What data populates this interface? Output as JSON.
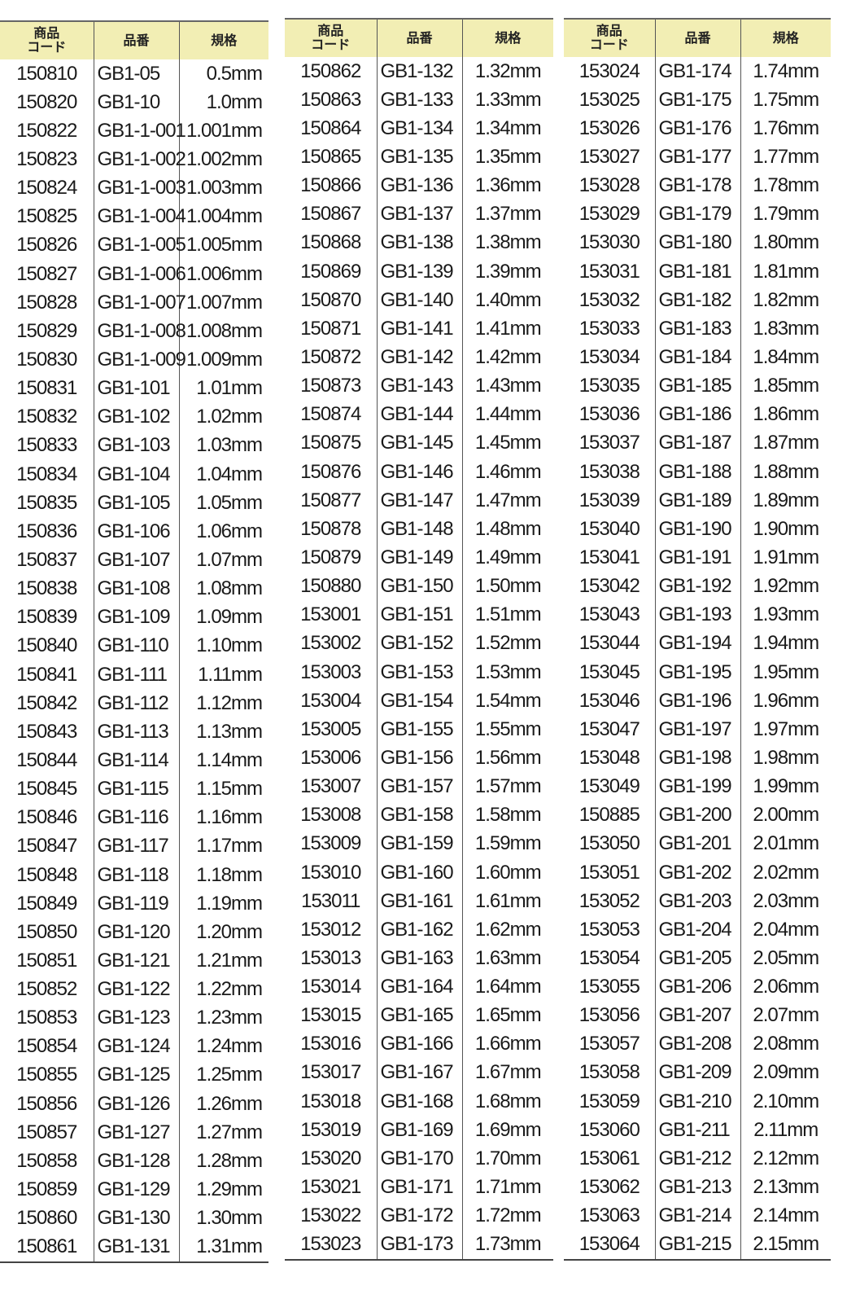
{
  "headers": {
    "code": "商品\nコード",
    "code_line1": "商品",
    "code_line2": "コード",
    "item": "品番",
    "spec": "規格"
  },
  "colors": {
    "header_bg": "#f2eeb4"
  },
  "tables": [
    {
      "rows": [
        [
          "150810",
          "GB1-05",
          "0.5mm"
        ],
        [
          "150820",
          "GB1-10",
          "1.0mm"
        ],
        [
          "150822",
          "GB1-1-001",
          "1.001mm"
        ],
        [
          "150823",
          "GB1-1-002",
          "1.002mm"
        ],
        [
          "150824",
          "GB1-1-003",
          "1.003mm"
        ],
        [
          "150825",
          "GB1-1-004",
          "1.004mm"
        ],
        [
          "150826",
          "GB1-1-005",
          "1.005mm"
        ],
        [
          "150827",
          "GB1-1-006",
          "1.006mm"
        ],
        [
          "150828",
          "GB1-1-007",
          "1.007mm"
        ],
        [
          "150829",
          "GB1-1-008",
          "1.008mm"
        ],
        [
          "150830",
          "GB1-1-009",
          "1.009mm"
        ],
        [
          "150831",
          "GB1-101",
          "1.01mm"
        ],
        [
          "150832",
          "GB1-102",
          "1.02mm"
        ],
        [
          "150833",
          "GB1-103",
          "1.03mm"
        ],
        [
          "150834",
          "GB1-104",
          "1.04mm"
        ],
        [
          "150835",
          "GB1-105",
          "1.05mm"
        ],
        [
          "150836",
          "GB1-106",
          "1.06mm"
        ],
        [
          "150837",
          "GB1-107",
          "1.07mm"
        ],
        [
          "150838",
          "GB1-108",
          "1.08mm"
        ],
        [
          "150839",
          "GB1-109",
          "1.09mm"
        ],
        [
          "150840",
          "GB1-110",
          "1.10mm"
        ],
        [
          "150841",
          "GB1-111",
          "1.11mm"
        ],
        [
          "150842",
          "GB1-112",
          "1.12mm"
        ],
        [
          "150843",
          "GB1-113",
          "1.13mm"
        ],
        [
          "150844",
          "GB1-114",
          "1.14mm"
        ],
        [
          "150845",
          "GB1-115",
          "1.15mm"
        ],
        [
          "150846",
          "GB1-116",
          "1.16mm"
        ],
        [
          "150847",
          "GB1-117",
          "1.17mm"
        ],
        [
          "150848",
          "GB1-118",
          "1.18mm"
        ],
        [
          "150849",
          "GB1-119",
          "1.19mm"
        ],
        [
          "150850",
          "GB1-120",
          "1.20mm"
        ],
        [
          "150851",
          "GB1-121",
          "1.21mm"
        ],
        [
          "150852",
          "GB1-122",
          "1.22mm"
        ],
        [
          "150853",
          "GB1-123",
          "1.23mm"
        ],
        [
          "150854",
          "GB1-124",
          "1.24mm"
        ],
        [
          "150855",
          "GB1-125",
          "1.25mm"
        ],
        [
          "150856",
          "GB1-126",
          "1.26mm"
        ],
        [
          "150857",
          "GB1-127",
          "1.27mm"
        ],
        [
          "150858",
          "GB1-128",
          "1.28mm"
        ],
        [
          "150859",
          "GB1-129",
          "1.29mm"
        ],
        [
          "150860",
          "GB1-130",
          "1.30mm"
        ],
        [
          "150861",
          "GB1-131",
          "1.31mm"
        ]
      ]
    },
    {
      "rows": [
        [
          "150862",
          "GB1-132",
          "1.32mm"
        ],
        [
          "150863",
          "GB1-133",
          "1.33mm"
        ],
        [
          "150864",
          "GB1-134",
          "1.34mm"
        ],
        [
          "150865",
          "GB1-135",
          "1.35mm"
        ],
        [
          "150866",
          "GB1-136",
          "1.36mm"
        ],
        [
          "150867",
          "GB1-137",
          "1.37mm"
        ],
        [
          "150868",
          "GB1-138",
          "1.38mm"
        ],
        [
          "150869",
          "GB1-139",
          "1.39mm"
        ],
        [
          "150870",
          "GB1-140",
          "1.40mm"
        ],
        [
          "150871",
          "GB1-141",
          "1.41mm"
        ],
        [
          "150872",
          "GB1-142",
          "1.42mm"
        ],
        [
          "150873",
          "GB1-143",
          "1.43mm"
        ],
        [
          "150874",
          "GB1-144",
          "1.44mm"
        ],
        [
          "150875",
          "GB1-145",
          "1.45mm"
        ],
        [
          "150876",
          "GB1-146",
          "1.46mm"
        ],
        [
          "150877",
          "GB1-147",
          "1.47mm"
        ],
        [
          "150878",
          "GB1-148",
          "1.48mm"
        ],
        [
          "150879",
          "GB1-149",
          "1.49mm"
        ],
        [
          "150880",
          "GB1-150",
          "1.50mm"
        ],
        [
          "153001",
          "GB1-151",
          "1.51mm"
        ],
        [
          "153002",
          "GB1-152",
          "1.52mm"
        ],
        [
          "153003",
          "GB1-153",
          "1.53mm"
        ],
        [
          "153004",
          "GB1-154",
          "1.54mm"
        ],
        [
          "153005",
          "GB1-155",
          "1.55mm"
        ],
        [
          "153006",
          "GB1-156",
          "1.56mm"
        ],
        [
          "153007",
          "GB1-157",
          "1.57mm"
        ],
        [
          "153008",
          "GB1-158",
          "1.58mm"
        ],
        [
          "153009",
          "GB1-159",
          "1.59mm"
        ],
        [
          "153010",
          "GB1-160",
          "1.60mm"
        ],
        [
          "153011",
          "GB1-161",
          "1.61mm"
        ],
        [
          "153012",
          "GB1-162",
          "1.62mm"
        ],
        [
          "153013",
          "GB1-163",
          "1.63mm"
        ],
        [
          "153014",
          "GB1-164",
          "1.64mm"
        ],
        [
          "153015",
          "GB1-165",
          "1.65mm"
        ],
        [
          "153016",
          "GB1-166",
          "1.66mm"
        ],
        [
          "153017",
          "GB1-167",
          "1.67mm"
        ],
        [
          "153018",
          "GB1-168",
          "1.68mm"
        ],
        [
          "153019",
          "GB1-169",
          "1.69mm"
        ],
        [
          "153020",
          "GB1-170",
          "1.70mm"
        ],
        [
          "153021",
          "GB1-171",
          "1.71mm"
        ],
        [
          "153022",
          "GB1-172",
          "1.72mm"
        ],
        [
          "153023",
          "GB1-173",
          "1.73mm"
        ]
      ]
    },
    {
      "rows": [
        [
          "153024",
          "GB1-174",
          "1.74mm"
        ],
        [
          "153025",
          "GB1-175",
          "1.75mm"
        ],
        [
          "153026",
          "GB1-176",
          "1.76mm"
        ],
        [
          "153027",
          "GB1-177",
          "1.77mm"
        ],
        [
          "153028",
          "GB1-178",
          "1.78mm"
        ],
        [
          "153029",
          "GB1-179",
          "1.79mm"
        ],
        [
          "153030",
          "GB1-180",
          "1.80mm"
        ],
        [
          "153031",
          "GB1-181",
          "1.81mm"
        ],
        [
          "153032",
          "GB1-182",
          "1.82mm"
        ],
        [
          "153033",
          "GB1-183",
          "1.83mm"
        ],
        [
          "153034",
          "GB1-184",
          "1.84mm"
        ],
        [
          "153035",
          "GB1-185",
          "1.85mm"
        ],
        [
          "153036",
          "GB1-186",
          "1.86mm"
        ],
        [
          "153037",
          "GB1-187",
          "1.87mm"
        ],
        [
          "153038",
          "GB1-188",
          "1.88mm"
        ],
        [
          "153039",
          "GB1-189",
          "1.89mm"
        ],
        [
          "153040",
          "GB1-190",
          "1.90mm"
        ],
        [
          "153041",
          "GB1-191",
          "1.91mm"
        ],
        [
          "153042",
          "GB1-192",
          "1.92mm"
        ],
        [
          "153043",
          "GB1-193",
          "1.93mm"
        ],
        [
          "153044",
          "GB1-194",
          "1.94mm"
        ],
        [
          "153045",
          "GB1-195",
          "1.95mm"
        ],
        [
          "153046",
          "GB1-196",
          "1.96mm"
        ],
        [
          "153047",
          "GB1-197",
          "1.97mm"
        ],
        [
          "153048",
          "GB1-198",
          "1.98mm"
        ],
        [
          "153049",
          "GB1-199",
          "1.99mm"
        ],
        [
          "150885",
          "GB1-200",
          "2.00mm"
        ],
        [
          "153050",
          "GB1-201",
          "2.01mm"
        ],
        [
          "153051",
          "GB1-202",
          "2.02mm"
        ],
        [
          "153052",
          "GB1-203",
          "2.03mm"
        ],
        [
          "153053",
          "GB1-204",
          "2.04mm"
        ],
        [
          "153054",
          "GB1-205",
          "2.05mm"
        ],
        [
          "153055",
          "GB1-206",
          "2.06mm"
        ],
        [
          "153056",
          "GB1-207",
          "2.07mm"
        ],
        [
          "153057",
          "GB1-208",
          "2.08mm"
        ],
        [
          "153058",
          "GB1-209",
          "2.09mm"
        ],
        [
          "153059",
          "GB1-210",
          "2.10mm"
        ],
        [
          "153060",
          "GB1-211",
          "2.11mm"
        ],
        [
          "153061",
          "GB1-212",
          "2.12mm"
        ],
        [
          "153062",
          "GB1-213",
          "2.13mm"
        ],
        [
          "153063",
          "GB1-214",
          "2.14mm"
        ],
        [
          "153064",
          "GB1-215",
          "2.15mm"
        ]
      ]
    }
  ]
}
